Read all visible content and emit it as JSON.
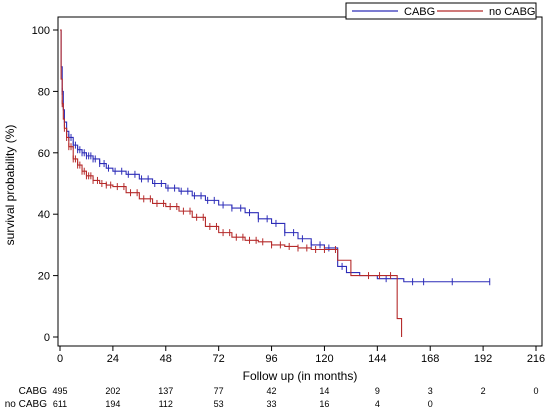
{
  "chart_data": {
    "type": "line",
    "title": "",
    "xlabel": "Follow up (in months)",
    "ylabel": "survival probability (%)",
    "xlim": [
      0,
      216
    ],
    "ylim": [
      0,
      100
    ],
    "xticks": [
      0,
      24,
      48,
      72,
      96,
      120,
      144,
      168,
      192,
      216
    ],
    "yticks": [
      0,
      20,
      40,
      60,
      80,
      100
    ],
    "grid": false,
    "legend_position": "top-right",
    "series": [
      {
        "name": "CABG",
        "color": "#2d2db8",
        "step": true,
        "points": [
          [
            0,
            100
          ],
          [
            0.5,
            88
          ],
          [
            1,
            80
          ],
          [
            1.5,
            74
          ],
          [
            2,
            70
          ],
          [
            3,
            67
          ],
          [
            4,
            65
          ],
          [
            6,
            62.5
          ],
          [
            8,
            61
          ],
          [
            10,
            60
          ],
          [
            12,
            59
          ],
          [
            15,
            58
          ],
          [
            18,
            56.5
          ],
          [
            21,
            55
          ],
          [
            24,
            54
          ],
          [
            30,
            53
          ],
          [
            36,
            51.5
          ],
          [
            42,
            50
          ],
          [
            48,
            48.5
          ],
          [
            54,
            47.5
          ],
          [
            60,
            46
          ],
          [
            66,
            44.5
          ],
          [
            72,
            43
          ],
          [
            78,
            42
          ],
          [
            84,
            40.5
          ],
          [
            90,
            38.5
          ],
          [
            96,
            37
          ],
          [
            102,
            34
          ],
          [
            108,
            32
          ],
          [
            114,
            30
          ],
          [
            120,
            29
          ],
          [
            126,
            23
          ],
          [
            130,
            21
          ],
          [
            136,
            20
          ],
          [
            144,
            19
          ],
          [
            156,
            18
          ],
          [
            168,
            18
          ],
          [
            180,
            18
          ],
          [
            195,
            18
          ]
        ],
        "censor_x": [
          1,
          2,
          3,
          4,
          5,
          6,
          7,
          8,
          9,
          10,
          11,
          12,
          13,
          14,
          15,
          16,
          18,
          20,
          22,
          25,
          28,
          31,
          34,
          37,
          40,
          43,
          46,
          49,
          52,
          55,
          58,
          61,
          64,
          67,
          70,
          74,
          78,
          82,
          86,
          90,
          94,
          98,
          102,
          106,
          110,
          114,
          118,
          122,
          128,
          148,
          160,
          165,
          178,
          195
        ]
      },
      {
        "name": "no CABG",
        "color": "#b52a2a",
        "step": true,
        "points": [
          [
            0,
            100
          ],
          [
            0.5,
            84
          ],
          [
            1,
            76
          ],
          [
            1.5,
            71
          ],
          [
            2,
            68
          ],
          [
            3,
            65
          ],
          [
            4,
            62
          ],
          [
            6,
            58
          ],
          [
            8,
            56
          ],
          [
            10,
            54
          ],
          [
            12,
            52.5
          ],
          [
            15,
            51
          ],
          [
            18,
            50
          ],
          [
            21,
            49.5
          ],
          [
            24,
            49
          ],
          [
            30,
            47
          ],
          [
            36,
            45
          ],
          [
            42,
            43.5
          ],
          [
            48,
            42.5
          ],
          [
            54,
            41
          ],
          [
            60,
            39
          ],
          [
            66,
            36
          ],
          [
            72,
            34
          ],
          [
            78,
            32.5
          ],
          [
            84,
            31.5
          ],
          [
            90,
            31
          ],
          [
            96,
            30
          ],
          [
            102,
            29.5
          ],
          [
            108,
            29
          ],
          [
            114,
            28.5
          ],
          [
            120,
            28.5
          ],
          [
            126,
            25
          ],
          [
            132,
            20
          ],
          [
            136,
            20
          ],
          [
            144,
            20
          ],
          [
            150,
            20
          ],
          [
            153,
            20
          ],
          [
            153,
            6
          ],
          [
            155,
            6
          ],
          [
            155,
            0
          ]
        ],
        "censor_x": [
          1,
          2,
          3,
          4,
          5,
          6,
          7,
          8,
          9,
          10,
          11,
          12,
          13,
          14,
          15,
          17,
          19,
          21,
          23,
          26,
          29,
          32,
          35,
          38,
          41,
          44,
          47,
          50,
          53,
          56,
          59,
          62,
          65,
          68,
          71,
          74,
          77,
          80,
          83,
          86,
          89,
          92,
          96,
          100,
          104,
          108,
          112,
          116,
          120,
          125,
          140,
          145,
          150
        ]
      }
    ],
    "risk_table": {
      "x": [
        0,
        24,
        48,
        72,
        96,
        120,
        144,
        168,
        192,
        216
      ],
      "rows": [
        {
          "label": "CABG",
          "values": [
            "495",
            "202",
            "137",
            "77",
            "42",
            "14",
            "9",
            "3",
            "2",
            "0"
          ]
        },
        {
          "label": "no CABG",
          "values": [
            "611",
            "194",
            "112",
            "53",
            "33",
            "16",
            "4",
            "0",
            "",
            ""
          ]
        }
      ]
    }
  }
}
